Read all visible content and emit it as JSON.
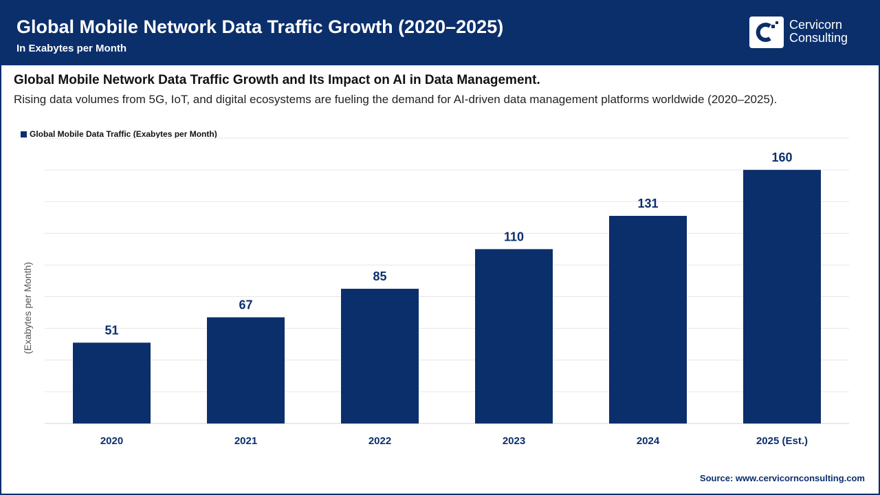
{
  "header": {
    "title": "Global Mobile Network Data Traffic Growth (2020–2025)",
    "subtitle": "In Exabytes per Month",
    "logo_text": [
      "Cervicorn",
      "Consulting"
    ]
  },
  "subheading": "Global Mobile Network Data Traffic Growth and Its Impact on AI in Data Management.",
  "description": "Rising data volumes from 5G, IoT, and digital ecosystems are fueling the demand for AI-driven data management platforms worldwide (2020–2025).",
  "source": "Source: www.cervicornconsulting.com",
  "colors": {
    "bar": "#0b2f6b",
    "header": "#0b2f6b",
    "label": "#0b2f6b"
  },
  "chart_data": {
    "type": "bar",
    "categories": [
      "2020",
      "2021",
      "2022",
      "2023",
      "2024",
      "2025 (Est.)"
    ],
    "series": [
      {
        "name": "Global Mobile Data Traffic (Exabytes per Month)",
        "values": [
          51,
          67,
          85,
          110,
          131,
          160
        ]
      }
    ],
    "ylabel": "(Exabytes per Month)",
    "xlabel": "",
    "ylim": [
      0,
      180
    ],
    "grid": true,
    "grid_step": 20,
    "y_tick_labels_shown": false,
    "data_labels": true,
    "legend": "top-left"
  }
}
